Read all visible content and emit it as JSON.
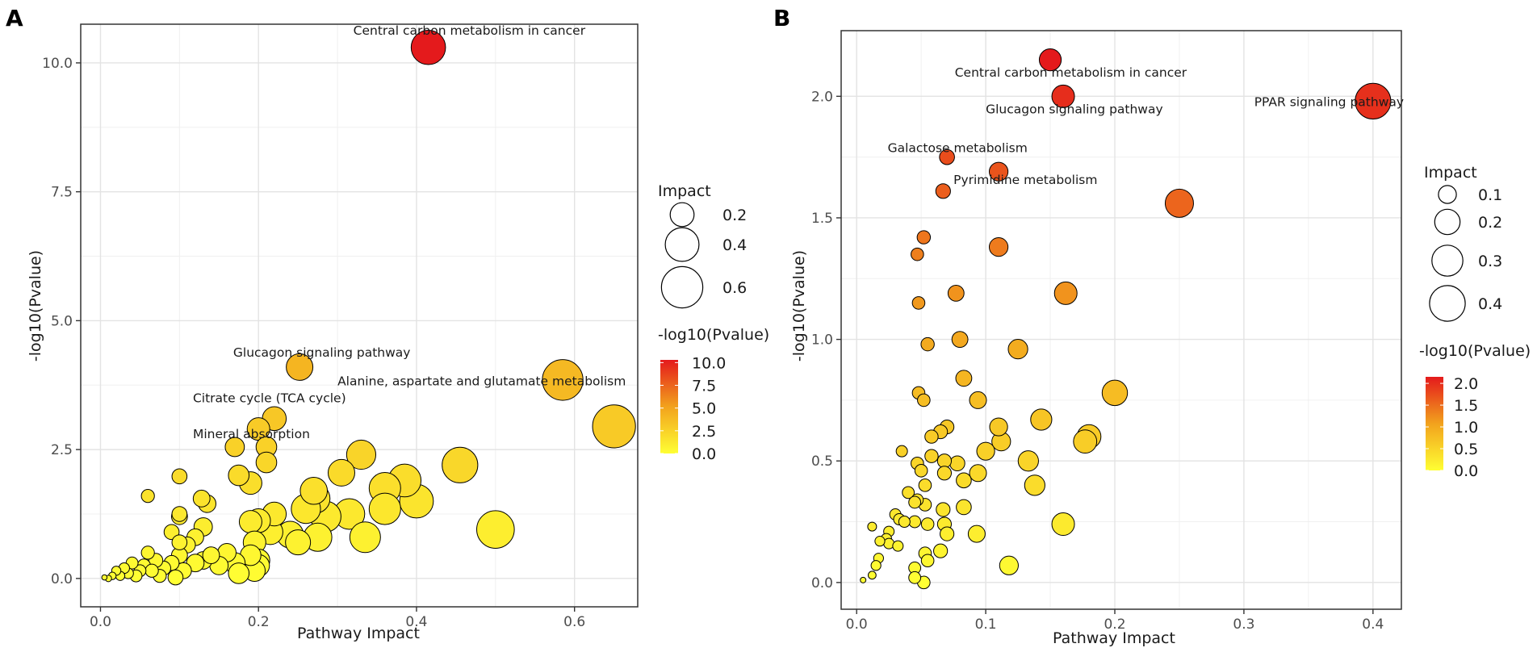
{
  "chart_data": [
    {
      "panel_label": "A",
      "type": "scatter",
      "xlabel": "Pathway Impact",
      "ylabel": "-log10(Pvalue)",
      "xlim": [
        -0.025,
        0.68
      ],
      "ylim": [
        -0.55,
        10.75
      ],
      "x_ticks": [
        0.0,
        0.2,
        0.4,
        0.6
      ],
      "x_tick_labels": [
        "0.0",
        "0.2",
        "0.4",
        "0.6"
      ],
      "y_ticks": [
        0.0,
        2.5,
        5.0,
        7.5,
        10.0
      ],
      "y_tick_labels": [
        "0.0",
        "2.5",
        "5.0",
        "7.5",
        "10.0"
      ],
      "size_legend": {
        "title": "Impact",
        "values": [
          0.2,
          0.4,
          0.6
        ],
        "labels": [
          "0.2",
          "0.4",
          "0.6"
        ]
      },
      "color_legend": {
        "title": "-log10(Pvalue)",
        "range": [
          0,
          10.3
        ],
        "ticks": [
          10.0,
          7.5,
          5.0,
          2.5,
          0.0
        ],
        "labels": [
          "10.0",
          "7.5",
          "5.0",
          "2.5",
          "0.0"
        ]
      },
      "colors": {
        "low": "#ffff33",
        "mid": "#f2a21d",
        "high": "#e41a1c"
      },
      "annotations": [
        {
          "text": "Central carbon metabolism in cancer",
          "x": 0.32,
          "y": 10.55
        },
        {
          "text": "Glucagon signaling pathway",
          "x": 0.168,
          "y": 4.3
        },
        {
          "text": "Alanine, aspartate and glutamate metabolism",
          "x": 0.3,
          "y": 3.75
        },
        {
          "text": "Citrate cycle (TCA cycle)",
          "x": 0.117,
          "y": 3.42
        },
        {
          "text": "Mineral absorption",
          "x": 0.117,
          "y": 2.72
        }
      ],
      "points": [
        {
          "x": 0.415,
          "y": 10.3,
          "s": 0.415
        },
        {
          "x": 0.585,
          "y": 3.85,
          "s": 0.585
        },
        {
          "x": 0.65,
          "y": 2.95,
          "s": 0.65
        },
        {
          "x": 0.252,
          "y": 4.1,
          "s": 0.25
        },
        {
          "x": 0.22,
          "y": 3.1,
          "s": 0.2
        },
        {
          "x": 0.2,
          "y": 2.9,
          "s": 0.18
        },
        {
          "x": 0.21,
          "y": 2.55,
          "s": 0.15
        },
        {
          "x": 0.17,
          "y": 2.55,
          "s": 0.13
        },
        {
          "x": 0.21,
          "y": 2.25,
          "s": 0.15
        },
        {
          "x": 0.33,
          "y": 2.4,
          "s": 0.3
        },
        {
          "x": 0.455,
          "y": 2.2,
          "s": 0.45
        },
        {
          "x": 0.305,
          "y": 2.05,
          "s": 0.25
        },
        {
          "x": 0.175,
          "y": 2.0,
          "s": 0.15
        },
        {
          "x": 0.1,
          "y": 1.98,
          "s": 0.08
        },
        {
          "x": 0.19,
          "y": 1.85,
          "s": 0.18
        },
        {
          "x": 0.385,
          "y": 1.9,
          "s": 0.38
        },
        {
          "x": 0.36,
          "y": 1.75,
          "s": 0.35
        },
        {
          "x": 0.4,
          "y": 1.5,
          "s": 0.4
        },
        {
          "x": 0.27,
          "y": 1.7,
          "s": 0.26
        },
        {
          "x": 0.272,
          "y": 1.55,
          "s": 0.3
        },
        {
          "x": 0.06,
          "y": 1.6,
          "s": 0.06
        },
        {
          "x": 0.128,
          "y": 1.55,
          "s": 0.1
        },
        {
          "x": 0.135,
          "y": 1.45,
          "s": 0.11
        },
        {
          "x": 0.315,
          "y": 1.25,
          "s": 0.33
        },
        {
          "x": 0.36,
          "y": 1.35,
          "s": 0.35
        },
        {
          "x": 0.285,
          "y": 1.2,
          "s": 0.33
        },
        {
          "x": 0.26,
          "y": 1.35,
          "s": 0.3
        },
        {
          "x": 0.22,
          "y": 1.25,
          "s": 0.2
        },
        {
          "x": 0.2,
          "y": 1.12,
          "s": 0.2
        },
        {
          "x": 0.19,
          "y": 1.1,
          "s": 0.18
        },
        {
          "x": 0.13,
          "y": 1.0,
          "s": 0.12
        },
        {
          "x": 0.1,
          "y": 1.25,
          "s": 0.08
        },
        {
          "x": 0.1,
          "y": 1.2,
          "s": 0.09
        },
        {
          "x": 0.09,
          "y": 0.9,
          "s": 0.08
        },
        {
          "x": 0.5,
          "y": 0.95,
          "s": 0.5
        },
        {
          "x": 0.335,
          "y": 0.8,
          "s": 0.33
        },
        {
          "x": 0.275,
          "y": 0.8,
          "s": 0.28
        },
        {
          "x": 0.24,
          "y": 0.85,
          "s": 0.25
        },
        {
          "x": 0.25,
          "y": 0.7,
          "s": 0.22
        },
        {
          "x": 0.215,
          "y": 0.9,
          "s": 0.22
        },
        {
          "x": 0.195,
          "y": 0.7,
          "s": 0.18
        },
        {
          "x": 0.12,
          "y": 0.8,
          "s": 0.1
        },
        {
          "x": 0.11,
          "y": 0.65,
          "s": 0.09
        },
        {
          "x": 0.1,
          "y": 0.7,
          "s": 0.08
        },
        {
          "x": 0.16,
          "y": 0.5,
          "s": 0.12
        },
        {
          "x": 0.14,
          "y": 0.45,
          "s": 0.1
        },
        {
          "x": 0.19,
          "y": 0.45,
          "s": 0.15
        },
        {
          "x": 0.2,
          "y": 0.35,
          "s": 0.18
        },
        {
          "x": 0.17,
          "y": 0.3,
          "s": 0.15
        },
        {
          "x": 0.15,
          "y": 0.25,
          "s": 0.12
        },
        {
          "x": 0.13,
          "y": 0.35,
          "s": 0.11
        },
        {
          "x": 0.12,
          "y": 0.3,
          "s": 0.11
        },
        {
          "x": 0.1,
          "y": 0.45,
          "s": 0.09
        },
        {
          "x": 0.09,
          "y": 0.3,
          "s": 0.08
        },
        {
          "x": 0.08,
          "y": 0.2,
          "s": 0.07
        },
        {
          "x": 0.07,
          "y": 0.35,
          "s": 0.07
        },
        {
          "x": 0.06,
          "y": 0.5,
          "s": 0.06
        },
        {
          "x": 0.055,
          "y": 0.25,
          "s": 0.06
        },
        {
          "x": 0.05,
          "y": 0.15,
          "s": 0.05
        },
        {
          "x": 0.04,
          "y": 0.3,
          "s": 0.05
        },
        {
          "x": 0.035,
          "y": 0.1,
          "s": 0.04
        },
        {
          "x": 0.03,
          "y": 0.2,
          "s": 0.04
        },
        {
          "x": 0.025,
          "y": 0.05,
          "s": 0.03
        },
        {
          "x": 0.02,
          "y": 0.15,
          "s": 0.03
        },
        {
          "x": 0.015,
          "y": 0.05,
          "s": 0.02
        },
        {
          "x": 0.01,
          "y": 0.0,
          "s": 0.015
        },
        {
          "x": 0.005,
          "y": 0.02,
          "s": 0.01
        },
        {
          "x": 0.095,
          "y": 0.02,
          "s": 0.08
        },
        {
          "x": 0.105,
          "y": 0.15,
          "s": 0.09
        },
        {
          "x": 0.175,
          "y": 0.1,
          "s": 0.15
        },
        {
          "x": 0.195,
          "y": 0.15,
          "s": 0.16
        },
        {
          "x": 0.2,
          "y": 0.25,
          "s": 0.17
        },
        {
          "x": 0.075,
          "y": 0.05,
          "s": 0.06
        },
        {
          "x": 0.065,
          "y": 0.15,
          "s": 0.06
        },
        {
          "x": 0.045,
          "y": 0.05,
          "s": 0.05
        }
      ]
    },
    {
      "panel_label": "B",
      "type": "scatter",
      "xlabel": "Pathway Impact",
      "ylabel": "-log10(Pvalue)",
      "xlim": [
        -0.012,
        0.422
      ],
      "ylim": [
        -0.11,
        2.27
      ],
      "x_ticks": [
        0.0,
        0.1,
        0.2,
        0.3,
        0.4
      ],
      "x_tick_labels": [
        "0.0",
        "0.1",
        "0.2",
        "0.3",
        "0.4"
      ],
      "y_ticks": [
        0.0,
        0.5,
        1.0,
        1.5,
        2.0
      ],
      "y_tick_labels": [
        "0.0",
        "0.5",
        "1.0",
        "1.5",
        "2.0"
      ],
      "size_legend": {
        "title": "Impact",
        "values": [
          0.1,
          0.2,
          0.3,
          0.4
        ],
        "labels": [
          "0.1",
          "0.2",
          "0.3",
          "0.4"
        ]
      },
      "color_legend": {
        "title": "-log10(Pvalue)",
        "range": [
          0,
          2.15
        ],
        "ticks": [
          2.0,
          1.5,
          1.0,
          0.5,
          0.0
        ],
        "labels": [
          "2.0",
          "1.5",
          "1.0",
          "0.5",
          "0.0"
        ]
      },
      "colors": {
        "low": "#ffff33",
        "mid": "#f2a21d",
        "high": "#e41a1c"
      },
      "annotations": [
        {
          "text": "Central carbon metabolism in cancer",
          "x": 0.076,
          "y": 2.08
        },
        {
          "text": "Glucagon signaling pathway",
          "x": 0.1,
          "y": 1.93
        },
        {
          "text": "PPAR signaling pathway",
          "x": 0.308,
          "y": 1.96
        },
        {
          "text": "Galactose metabolism",
          "x": 0.024,
          "y": 1.77
        },
        {
          "text": "Pyrimidine metabolism",
          "x": 0.075,
          "y": 1.64
        }
      ],
      "points": [
        {
          "x": 0.15,
          "y": 2.15,
          "s": 0.15
        },
        {
          "x": 0.16,
          "y": 2.0,
          "s": 0.16
        },
        {
          "x": 0.4,
          "y": 1.98,
          "s": 0.4
        },
        {
          "x": 0.07,
          "y": 1.75,
          "s": 0.07
        },
        {
          "x": 0.11,
          "y": 1.69,
          "s": 0.11
        },
        {
          "x": 0.067,
          "y": 1.61,
          "s": 0.067
        },
        {
          "x": 0.25,
          "y": 1.56,
          "s": 0.25
        },
        {
          "x": 0.052,
          "y": 1.42,
          "s": 0.055
        },
        {
          "x": 0.11,
          "y": 1.38,
          "s": 0.11
        },
        {
          "x": 0.047,
          "y": 1.35,
          "s": 0.05
        },
        {
          "x": 0.077,
          "y": 1.19,
          "s": 0.08
        },
        {
          "x": 0.162,
          "y": 1.19,
          "s": 0.16
        },
        {
          "x": 0.048,
          "y": 1.15,
          "s": 0.05
        },
        {
          "x": 0.08,
          "y": 1.0,
          "s": 0.08
        },
        {
          "x": 0.055,
          "y": 0.98,
          "s": 0.055
        },
        {
          "x": 0.125,
          "y": 0.96,
          "s": 0.12
        },
        {
          "x": 0.083,
          "y": 0.84,
          "s": 0.08
        },
        {
          "x": 0.2,
          "y": 0.78,
          "s": 0.2
        },
        {
          "x": 0.048,
          "y": 0.78,
          "s": 0.05
        },
        {
          "x": 0.052,
          "y": 0.75,
          "s": 0.05
        },
        {
          "x": 0.094,
          "y": 0.75,
          "s": 0.09
        },
        {
          "x": 0.143,
          "y": 0.67,
          "s": 0.14
        },
        {
          "x": 0.11,
          "y": 0.64,
          "s": 0.1
        },
        {
          "x": 0.07,
          "y": 0.64,
          "s": 0.06
        },
        {
          "x": 0.065,
          "y": 0.62,
          "s": 0.06
        },
        {
          "x": 0.058,
          "y": 0.6,
          "s": 0.055
        },
        {
          "x": 0.18,
          "y": 0.6,
          "s": 0.18
        },
        {
          "x": 0.112,
          "y": 0.58,
          "s": 0.11
        },
        {
          "x": 0.177,
          "y": 0.58,
          "s": 0.17
        },
        {
          "x": 0.1,
          "y": 0.54,
          "s": 0.1
        },
        {
          "x": 0.035,
          "y": 0.54,
          "s": 0.04
        },
        {
          "x": 0.058,
          "y": 0.52,
          "s": 0.055
        },
        {
          "x": 0.133,
          "y": 0.5,
          "s": 0.13
        },
        {
          "x": 0.068,
          "y": 0.5,
          "s": 0.06
        },
        {
          "x": 0.078,
          "y": 0.49,
          "s": 0.07
        },
        {
          "x": 0.047,
          "y": 0.49,
          "s": 0.05
        },
        {
          "x": 0.05,
          "y": 0.46,
          "s": 0.05
        },
        {
          "x": 0.068,
          "y": 0.45,
          "s": 0.06
        },
        {
          "x": 0.094,
          "y": 0.45,
          "s": 0.09
        },
        {
          "x": 0.083,
          "y": 0.42,
          "s": 0.07
        },
        {
          "x": 0.138,
          "y": 0.4,
          "s": 0.13
        },
        {
          "x": 0.053,
          "y": 0.4,
          "s": 0.05
        },
        {
          "x": 0.04,
          "y": 0.37,
          "s": 0.045
        },
        {
          "x": 0.047,
          "y": 0.34,
          "s": 0.045
        },
        {
          "x": 0.045,
          "y": 0.33,
          "s": 0.045
        },
        {
          "x": 0.053,
          "y": 0.32,
          "s": 0.05
        },
        {
          "x": 0.083,
          "y": 0.31,
          "s": 0.07
        },
        {
          "x": 0.067,
          "y": 0.3,
          "s": 0.06
        },
        {
          "x": 0.03,
          "y": 0.28,
          "s": 0.04
        },
        {
          "x": 0.033,
          "y": 0.26,
          "s": 0.04
        },
        {
          "x": 0.037,
          "y": 0.25,
          "s": 0.04
        },
        {
          "x": 0.045,
          "y": 0.25,
          "s": 0.045
        },
        {
          "x": 0.068,
          "y": 0.24,
          "s": 0.06
        },
        {
          "x": 0.16,
          "y": 0.24,
          "s": 0.16
        },
        {
          "x": 0.055,
          "y": 0.24,
          "s": 0.05
        },
        {
          "x": 0.025,
          "y": 0.21,
          "s": 0.035
        },
        {
          "x": 0.07,
          "y": 0.2,
          "s": 0.06
        },
        {
          "x": 0.093,
          "y": 0.2,
          "s": 0.09
        },
        {
          "x": 0.023,
          "y": 0.18,
          "s": 0.035
        },
        {
          "x": 0.025,
          "y": 0.16,
          "s": 0.035
        },
        {
          "x": 0.018,
          "y": 0.17,
          "s": 0.03
        },
        {
          "x": 0.032,
          "y": 0.15,
          "s": 0.035
        },
        {
          "x": 0.012,
          "y": 0.23,
          "s": 0.025
        },
        {
          "x": 0.065,
          "y": 0.13,
          "s": 0.06
        },
        {
          "x": 0.053,
          "y": 0.12,
          "s": 0.05
        },
        {
          "x": 0.017,
          "y": 0.1,
          "s": 0.03
        },
        {
          "x": 0.055,
          "y": 0.09,
          "s": 0.05
        },
        {
          "x": 0.015,
          "y": 0.07,
          "s": 0.03
        },
        {
          "x": 0.045,
          "y": 0.06,
          "s": 0.045
        },
        {
          "x": 0.118,
          "y": 0.07,
          "s": 0.11
        },
        {
          "x": 0.012,
          "y": 0.03,
          "s": 0.02
        },
        {
          "x": 0.045,
          "y": 0.02,
          "s": 0.045
        },
        {
          "x": 0.052,
          "y": 0.0,
          "s": 0.05
        },
        {
          "x": 0.005,
          "y": 0.01,
          "s": 0.01
        }
      ]
    }
  ]
}
